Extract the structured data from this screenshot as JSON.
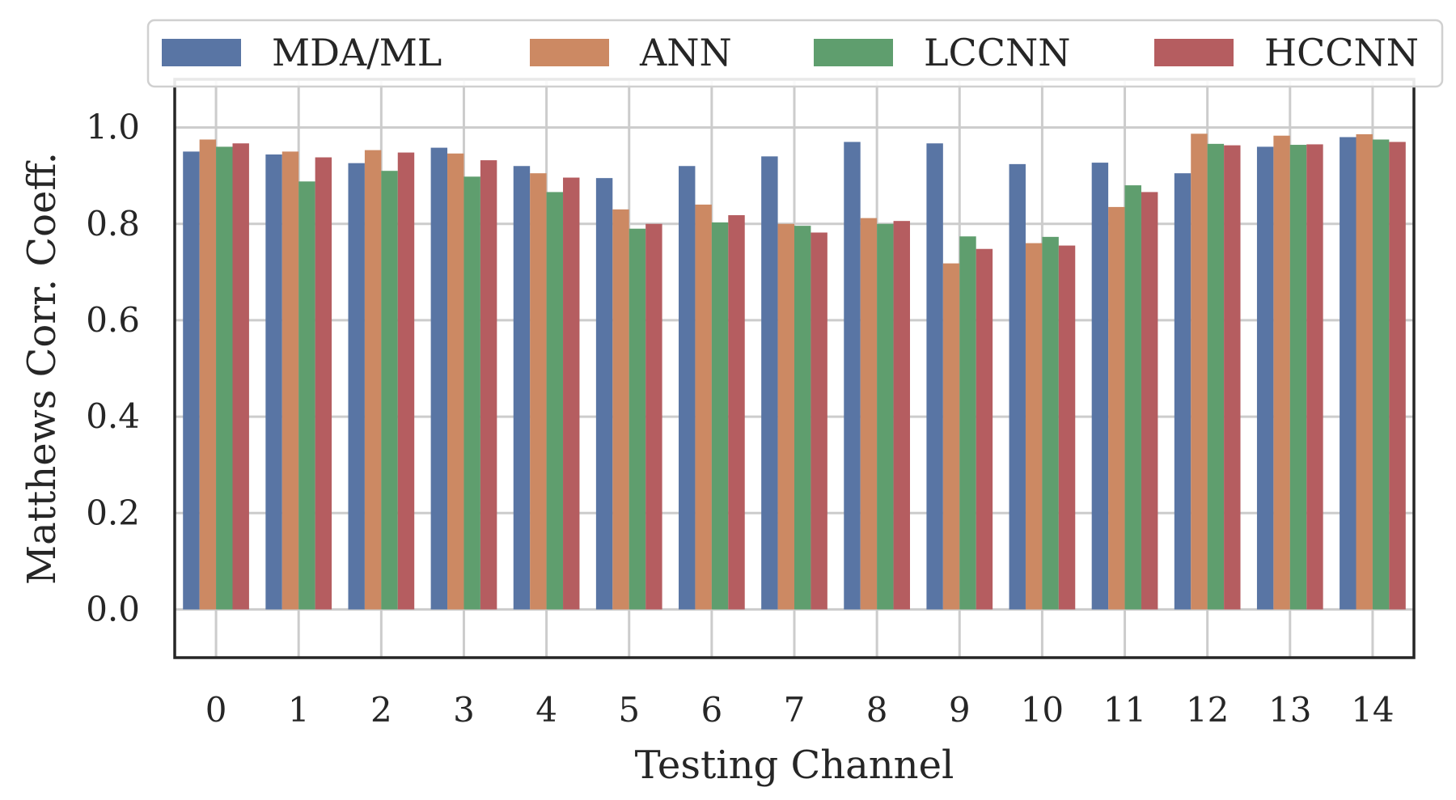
{
  "chart_data": {
    "type": "bar",
    "title": "",
    "xlabel": "Testing Channel",
    "ylabel": "Matthews Corr. Coeff.",
    "ylim": [
      -0.1,
      1.1
    ],
    "yticks": [
      "0.0",
      "0.2",
      "0.4",
      "0.6",
      "0.8",
      "1.0"
    ],
    "categories": [
      "0",
      "1",
      "2",
      "3",
      "4",
      "5",
      "6",
      "7",
      "8",
      "9",
      "10",
      "11",
      "12",
      "13",
      "14"
    ],
    "grid": true,
    "legend_position": "top",
    "series": [
      {
        "name": "MDA/ML",
        "color": "#5975a4",
        "values": [
          0.95,
          0.944,
          0.926,
          0.958,
          0.92,
          0.895,
          0.92,
          0.94,
          0.97,
          0.967,
          0.924,
          0.927,
          0.905,
          0.96,
          0.98
        ]
      },
      {
        "name": "ANN",
        "color": "#cc8963",
        "values": [
          0.975,
          0.95,
          0.953,
          0.946,
          0.905,
          0.83,
          0.84,
          0.8,
          0.812,
          0.718,
          0.76,
          0.835,
          0.987,
          0.983,
          0.986
        ]
      },
      {
        "name": "LCCNN",
        "color": "#5f9e6e",
        "values": [
          0.96,
          0.888,
          0.91,
          0.898,
          0.866,
          0.79,
          0.803,
          0.796,
          0.8,
          0.774,
          0.773,
          0.88,
          0.966,
          0.964,
          0.975
        ]
      },
      {
        "name": "HCCNN",
        "color": "#b55d60",
        "values": [
          0.967,
          0.938,
          0.948,
          0.932,
          0.896,
          0.8,
          0.818,
          0.782,
          0.806,
          0.748,
          0.755,
          0.866,
          0.963,
          0.965,
          0.97
        ]
      }
    ]
  }
}
